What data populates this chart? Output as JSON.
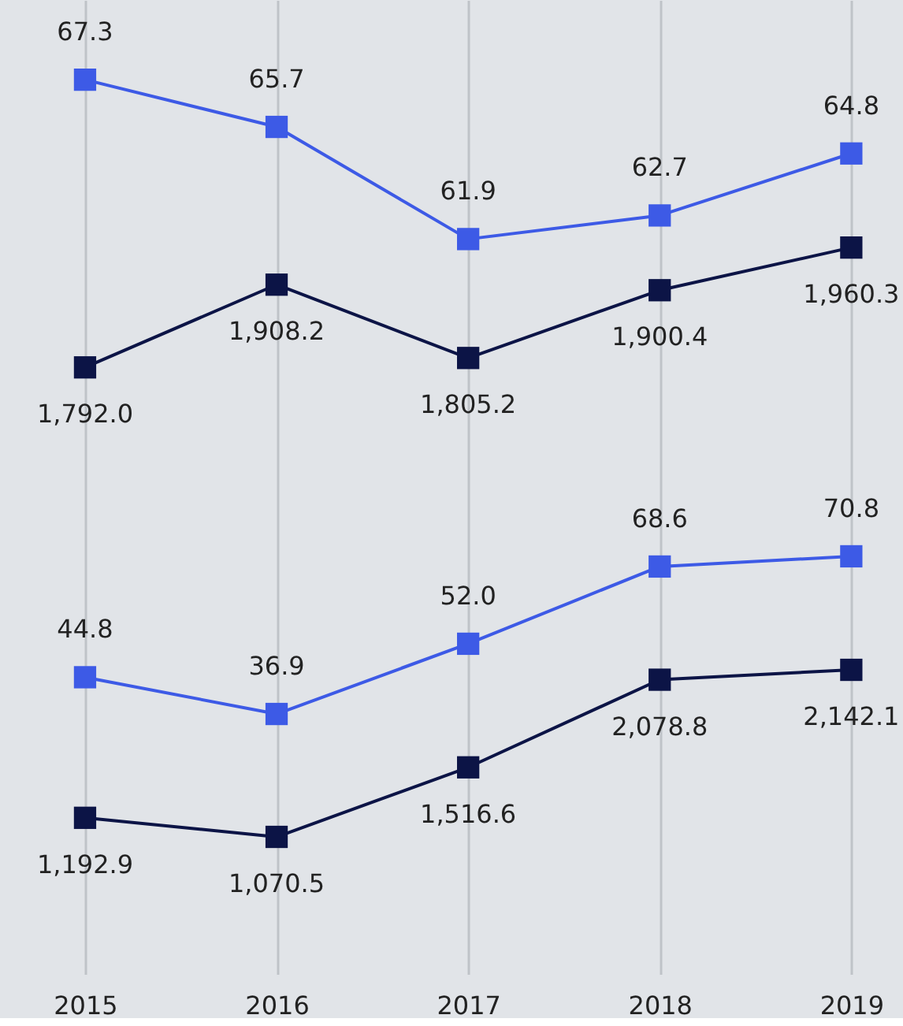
{
  "chart_data": [
    {
      "type": "line",
      "x": [
        2015,
        2016,
        2017,
        2018,
        2019
      ],
      "xlim": [
        2014.556,
        2019.27
      ],
      "xticks": [
        2015,
        2016,
        2017,
        2018,
        2019
      ],
      "series": [
        {
          "color": "#3d5ae6",
          "values": [
            67.3,
            65.7,
            61.9,
            62.7,
            64.8
          ],
          "value_labels": [
            "67.3",
            "65.7",
            "61.9",
            "62.7",
            "64.8"
          ],
          "axis": "y"
        },
        {
          "color": "#0c1446",
          "values": [
            1792.0,
            1908.2,
            1805.2,
            1900.4,
            1960.3
          ],
          "value_labels": [
            "1,792.0",
            "1,908.2",
            "1,805.2",
            "1,900.4",
            "1,960.3"
          ],
          "axis": "y2"
        }
      ],
      "ylim": [
        53.5,
        70.0
      ],
      "y2lim": [
        1624,
        2308
      ],
      "tick_labels": false,
      "grid": "x",
      "marker": "square",
      "line_style": "solid"
    },
    {
      "type": "line",
      "x": [
        2015,
        2016,
        2017,
        2018,
        2019
      ],
      "xlim": [
        2014.556,
        2019.27
      ],
      "xticks": [
        2015,
        2016,
        2017,
        2018,
        2019
      ],
      "series": [
        {
          "color": "#3d5ae6",
          "values": [
            44.8,
            36.9,
            52.0,
            68.6,
            70.8
          ],
          "value_labels": [
            "44.8",
            "36.9",
            "52.0",
            "68.6",
            "70.8"
          ],
          "axis": "y"
        },
        {
          "color": "#0c1446",
          "values": [
            1192.9,
            1070.5,
            1516.6,
            2078.8,
            2142.1
          ],
          "value_labels": [
            "1,192.9",
            "1,070.5",
            "1,516.6",
            "2,078.8",
            "2,142.1"
          ],
          "axis": "y2"
        }
      ],
      "ylim": [
        -19.0,
        85.7
      ],
      "y2lim": [
        191,
        3315
      ],
      "tick_labels": "x",
      "grid": "x",
      "marker": "square",
      "line_style": "solid"
    }
  ]
}
